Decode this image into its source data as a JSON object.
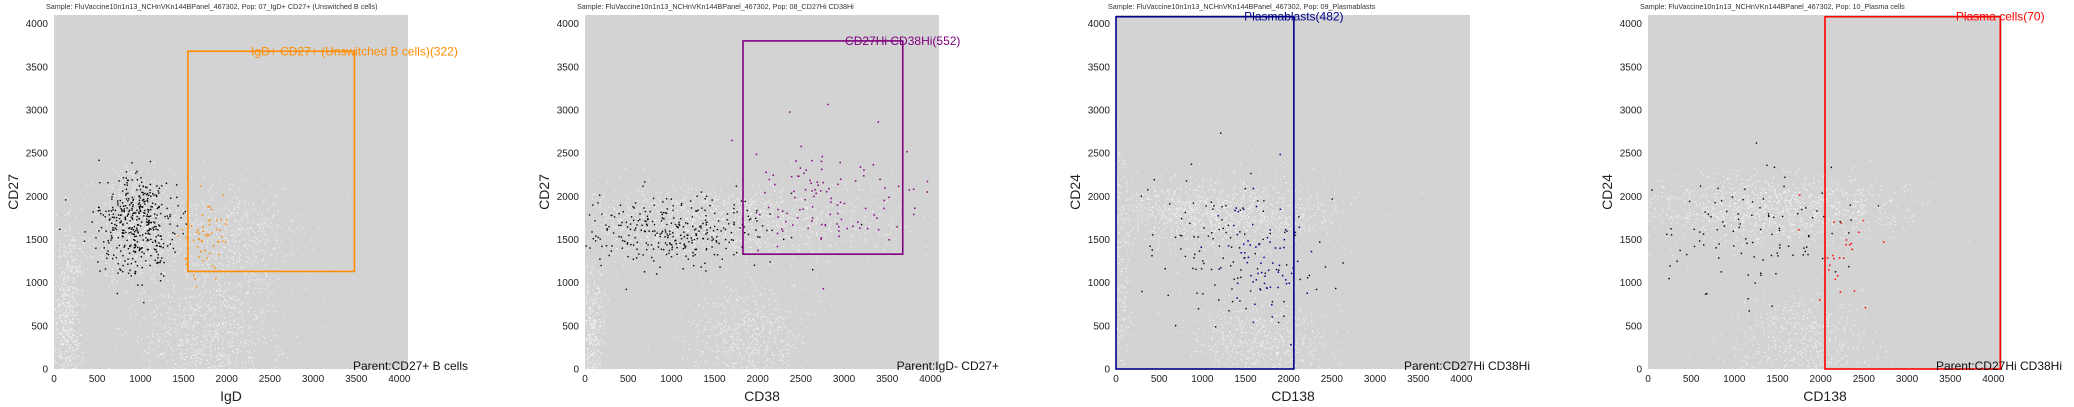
{
  "chart_data": [
    {
      "type": "scatter",
      "title": "Sample: FluVaccine10n1n13_NCHnVKn144BPanel_467302, Pop: 07_IgD+ CD27+ (Unswitched B cells)",
      "xlabel": "IgD",
      "ylabel": "CD27",
      "xlim": [
        0,
        4100
      ],
      "ylim": [
        0,
        4100
      ],
      "xticks": [
        0,
        500,
        1000,
        1500,
        2000,
        2500,
        3000,
        3500,
        4000
      ],
      "yticks": [
        0,
        500,
        1000,
        1500,
        2000,
        2500,
        3000,
        3500,
        4000
      ],
      "gate": {
        "x0": 1550,
        "x1": 3480,
        "y0": 1130,
        "y1": 3680,
        "color": "#ff8c00",
        "label": "IgD+ CD27+ (Unswitched B cells)(322)"
      },
      "parent_label": "Parent:CD27+ B cells",
      "clusters": [
        {
          "cx": 950,
          "cy": 1650,
          "sx": 260,
          "sy": 330,
          "n": 700,
          "tone": "bg",
          "shape": "gauss"
        },
        {
          "cx": 2100,
          "cy": 1550,
          "sx": 380,
          "sy": 300,
          "n": 500,
          "tone": "bg",
          "shape": "gauss"
        },
        {
          "cx": 150,
          "cy": 600,
          "sx": 90,
          "sy": 600,
          "n": 650,
          "tone": "bg",
          "shape": "gauss"
        },
        {
          "cx": 1800,
          "cy": 400,
          "sx": 450,
          "sy": 380,
          "n": 900,
          "tone": "bg",
          "shape": "gauss"
        },
        {
          "cx": 950,
          "cy": 1700,
          "sx": 230,
          "sy": 290,
          "n": 420,
          "tone": "black",
          "shape": "gauss"
        },
        {
          "cx": 1750,
          "cy": 1500,
          "sx": 150,
          "sy": 220,
          "n": 60,
          "tone": "gate",
          "shape": "gauss"
        }
      ]
    },
    {
      "type": "scatter",
      "title": "Sample: FluVaccine10n1n13_NCHnVKn144BPanel_467302, Pop: 08_CD27Hi CD38Hi",
      "xlabel": "CD38",
      "ylabel": "CD27",
      "xlim": [
        0,
        4100
      ],
      "ylim": [
        0,
        4100
      ],
      "xticks": [
        0,
        500,
        1000,
        1500,
        2000,
        2500,
        3000,
        3500,
        4000
      ],
      "yticks": [
        0,
        500,
        1000,
        1500,
        2000,
        2500,
        3000,
        3500,
        4000
      ],
      "gate": {
        "x0": 1830,
        "x1": 3680,
        "y0": 1330,
        "y1": 3800,
        "color": "#800080",
        "label": "CD27Hi CD38Hi(552)"
      },
      "parent_label": "Parent:IgD- CD27+",
      "clusters": [
        {
          "cx": 1500,
          "cy": 1700,
          "sx": 950,
          "sy": 220,
          "n": 1300,
          "tone": "bg",
          "shape": "gauss"
        },
        {
          "cx": 80,
          "cy": 500,
          "sx": 70,
          "sy": 400,
          "n": 350,
          "tone": "bg",
          "shape": "gauss"
        },
        {
          "cx": 1900,
          "cy": 350,
          "sx": 350,
          "sy": 320,
          "n": 650,
          "tone": "bg",
          "shape": "gauss"
        },
        {
          "cx": 1000,
          "cy": 1600,
          "sx": 600,
          "sy": 200,
          "n": 330,
          "tone": "black",
          "shape": "gauss"
        },
        {
          "cx": 2800,
          "cy": 2000,
          "sx": 450,
          "sy": 300,
          "n": 110,
          "tone": "gate",
          "shape": "gauss"
        }
      ]
    },
    {
      "type": "scatter",
      "title": "Sample: FluVaccine10n1n13_NCHnVKn144BPanel_467302, Pop: 09_Plasmablasts",
      "xlabel": "CD138",
      "ylabel": "CD24",
      "xlim": [
        0,
        4100
      ],
      "ylim": [
        0,
        4100
      ],
      "xticks": [
        0,
        500,
        1000,
        1500,
        2000,
        2500,
        3000,
        3500,
        4000
      ],
      "yticks": [
        0,
        500,
        1000,
        1500,
        2000,
        2500,
        3000,
        3500,
        4000
      ],
      "gate": {
        "x0": 0,
        "x1": 2060,
        "y0": 0,
        "y1": 4080,
        "color": "#00008b",
        "label": "Plasmablasts(482)"
      },
      "parent_label": "Parent:CD27Hi CD38Hi",
      "clusters": [
        {
          "cx": 1150,
          "cy": 1800,
          "sx": 650,
          "sy": 200,
          "n": 1200,
          "tone": "bg",
          "shape": "gauss"
        },
        {
          "cx": 1700,
          "cy": 300,
          "sx": 400,
          "sy": 280,
          "n": 650,
          "tone": "bg",
          "shape": "gauss"
        },
        {
          "cx": 60,
          "cy": 1100,
          "sx": 50,
          "sy": 700,
          "n": 200,
          "tone": "bg",
          "shape": "gauss"
        },
        {
          "cx": 1300,
          "cy": 1400,
          "sx": 550,
          "sy": 450,
          "n": 110,
          "tone": "black",
          "shape": "gauss"
        },
        {
          "cx": 1650,
          "cy": 1300,
          "sx": 250,
          "sy": 400,
          "n": 70,
          "tone": "gate",
          "shape": "gauss"
        }
      ]
    },
    {
      "type": "scatter",
      "title": "Sample: FluVaccine10n1n13_NCHnVKn144BPanel_467302, Pop: 10_Plasma cells",
      "xlabel": "CD138",
      "ylabel": "CD24",
      "xlim": [
        0,
        4100
      ],
      "ylim": [
        0,
        4100
      ],
      "xticks": [
        0,
        500,
        1000,
        1500,
        2000,
        2500,
        3000,
        3500,
        4000
      ],
      "yticks": [
        0,
        500,
        1000,
        1500,
        2000,
        2500,
        3000,
        3500,
        4000
      ],
      "gate": {
        "x0": 2050,
        "x1": 4080,
        "y0": 0,
        "y1": 4080,
        "color": "#ff0000",
        "label": "Plasma cells(70)"
      },
      "parent_label": "Parent:CD27Hi CD38Hi",
      "clusters": [
        {
          "cx": 1450,
          "cy": 1850,
          "sx": 800,
          "sy": 200,
          "n": 1300,
          "tone": "bg",
          "shape": "gauss"
        },
        {
          "cx": 1800,
          "cy": 300,
          "sx": 400,
          "sy": 280,
          "n": 600,
          "tone": "bg",
          "shape": "gauss"
        },
        {
          "cx": 1200,
          "cy": 1600,
          "sx": 650,
          "sy": 350,
          "n": 110,
          "tone": "black",
          "shape": "gauss"
        },
        {
          "cx": 2200,
          "cy": 1400,
          "sx": 200,
          "sy": 300,
          "n": 25,
          "tone": "gate",
          "shape": "gauss"
        }
      ]
    }
  ]
}
